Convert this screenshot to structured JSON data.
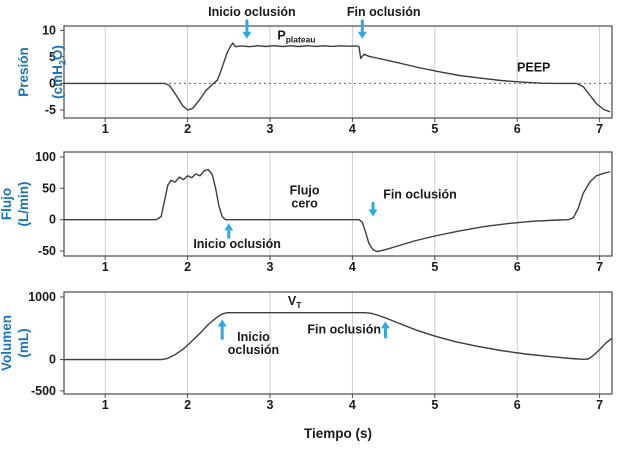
{
  "colors": {
    "axis_label": "#1b75bb",
    "arrow": "#2da8e0",
    "waveform": "#3d3d3d",
    "grid": "#cccccc",
    "border": "#4a4a4a",
    "text": "#1a1a1a"
  },
  "x_axis": {
    "label": "Tiempo (s)"
  },
  "y_axes": {
    "pressure": {
      "line1": "Presión",
      "l2a": "(cmH",
      "l2sub": "2",
      "l2b": "O)"
    },
    "flow": {
      "text": "Flujo\n(L/min)"
    },
    "volume": {
      "text": "Volumen\n(mL)"
    }
  },
  "chart_data": [
    {
      "type": "line",
      "name": "presion",
      "title": "",
      "ylabel": "Presión (cmH₂O)",
      "xlabel": "Tiempo (s)",
      "xlim": [
        0.5,
        7.15
      ],
      "ylim": [
        -6.5,
        10.8
      ],
      "xticks": [
        1,
        2,
        3,
        4,
        5,
        6,
        7
      ],
      "yticks": [
        -5,
        0,
        5,
        10
      ],
      "grid": "vertical-only",
      "zero_dotted": true,
      "series": [
        {
          "name": "presion",
          "points": [
            [
              0.5,
              0
            ],
            [
              1.72,
              0
            ],
            [
              1.78,
              -0.4
            ],
            [
              1.86,
              -2.2
            ],
            [
              1.94,
              -4.2
            ],
            [
              2.0,
              -5.0
            ],
            [
              2.06,
              -4.7
            ],
            [
              2.14,
              -3.2
            ],
            [
              2.22,
              -1.4
            ],
            [
              2.3,
              -0.2
            ],
            [
              2.36,
              0.6
            ],
            [
              2.4,
              2.2
            ],
            [
              2.44,
              4.0
            ],
            [
              2.48,
              5.8
            ],
            [
              2.52,
              7.0
            ],
            [
              2.55,
              7.6
            ],
            [
              2.58,
              6.9
            ],
            [
              2.65,
              7.05
            ],
            [
              2.75,
              6.9
            ],
            [
              2.85,
              7.1
            ],
            [
              2.95,
              6.95
            ],
            [
              3.05,
              7.1
            ],
            [
              3.15,
              6.95
            ],
            [
              3.25,
              7.08
            ],
            [
              3.35,
              6.95
            ],
            [
              3.45,
              7.1
            ],
            [
              3.55,
              6.97
            ],
            [
              3.65,
              7.08
            ],
            [
              3.75,
              6.96
            ],
            [
              3.85,
              7.08
            ],
            [
              3.95,
              7.0
            ],
            [
              4.05,
              7.06
            ],
            [
              4.08,
              6.9
            ],
            [
              4.1,
              4.7
            ],
            [
              4.14,
              5.5
            ],
            [
              4.2,
              5.1
            ],
            [
              4.35,
              4.6
            ],
            [
              4.55,
              3.9
            ],
            [
              4.8,
              3.0
            ],
            [
              5.05,
              2.2
            ],
            [
              5.3,
              1.5
            ],
            [
              5.55,
              1.0
            ],
            [
              5.8,
              0.55
            ],
            [
              6.05,
              0.25
            ],
            [
              6.3,
              0.05
            ],
            [
              6.45,
              0
            ],
            [
              6.72,
              0
            ],
            [
              6.8,
              -0.6
            ],
            [
              6.88,
              -2.2
            ],
            [
              6.96,
              -3.8
            ],
            [
              7.05,
              -4.9
            ],
            [
              7.12,
              -5.3
            ]
          ]
        }
      ],
      "annotations": [
        {
          "type": "text",
          "name": "inicio-occlusion-label",
          "text": "Inicio oclusión",
          "x": 2.78,
          "y": 12.7
        },
        {
          "type": "text",
          "name": "fin-occlusion-label",
          "text": "Fin oclusión",
          "x": 4.38,
          "y": 12.7
        },
        {
          "type": "arrow",
          "name": "inicio-occlusion-arrow",
          "x": 2.72,
          "y1": 12.0,
          "y2": 8.4
        },
        {
          "type": "arrow",
          "name": "fin-occlusion-arrow",
          "x": 4.12,
          "y1": 12.0,
          "y2": 8.4
        },
        {
          "type": "subtext",
          "name": "p-plateau-label",
          "main": "P",
          "sub": "plateau",
          "x": 3.32,
          "y": 8.3
        },
        {
          "type": "text",
          "name": "peep-label",
          "text": "PEEP",
          "x": 6.2,
          "y": 2.2
        }
      ]
    },
    {
      "type": "line",
      "name": "flujo",
      "title": "",
      "ylabel": "Flujo (L/min)",
      "xlabel": "Tiempo (s)",
      "xlim": [
        0.5,
        7.15
      ],
      "ylim": [
        -58,
        108
      ],
      "xticks": [
        1,
        2,
        3,
        4,
        5,
        6,
        7
      ],
      "yticks": [
        -50,
        0,
        50,
        100
      ],
      "grid": "vertical-only",
      "zero_dotted": false,
      "series": [
        {
          "name": "flujo",
          "points": [
            [
              0.5,
              0
            ],
            [
              1.62,
              0
            ],
            [
              1.68,
              5
            ],
            [
              1.72,
              30
            ],
            [
              1.76,
              55
            ],
            [
              1.8,
              63
            ],
            [
              1.85,
              60
            ],
            [
              1.9,
              68
            ],
            [
              1.95,
              64
            ],
            [
              2.0,
              70
            ],
            [
              2.05,
              67
            ],
            [
              2.1,
              73
            ],
            [
              2.15,
              70
            ],
            [
              2.2,
              78
            ],
            [
              2.25,
              80
            ],
            [
              2.3,
              72
            ],
            [
              2.34,
              50
            ],
            [
              2.38,
              22
            ],
            [
              2.42,
              5
            ],
            [
              2.46,
              0
            ],
            [
              4.08,
              0
            ],
            [
              4.12,
              -4
            ],
            [
              4.16,
              -20
            ],
            [
              4.2,
              -38
            ],
            [
              4.25,
              -48
            ],
            [
              4.3,
              -51
            ],
            [
              4.4,
              -48
            ],
            [
              4.55,
              -42
            ],
            [
              4.75,
              -34
            ],
            [
              5.0,
              -26
            ],
            [
              5.3,
              -18
            ],
            [
              5.6,
              -11
            ],
            [
              5.9,
              -6
            ],
            [
              6.2,
              -2.5
            ],
            [
              6.5,
              -0.5
            ],
            [
              6.62,
              0
            ],
            [
              6.68,
              3
            ],
            [
              6.74,
              18
            ],
            [
              6.8,
              42
            ],
            [
              6.88,
              60
            ],
            [
              6.96,
              70
            ],
            [
              7.05,
              74
            ],
            [
              7.12,
              76
            ]
          ]
        }
      ],
      "annotations": [
        {
          "type": "text",
          "name": "flujo-cero-label",
          "text": "Flujo\ncero",
          "x": 3.42,
          "y": 40
        },
        {
          "type": "text",
          "name": "fin-occlusion-label",
          "text": "Fin oclusión",
          "x": 4.82,
          "y": 34
        },
        {
          "type": "arrow",
          "name": "fin-occlusion-arrow",
          "x": 4.25,
          "y1": 28,
          "y2": 5
        },
        {
          "type": "arrow",
          "name": "inicio-occlusion-arrow",
          "x": 2.5,
          "y1": -30,
          "y2": -6
        },
        {
          "type": "text",
          "name": "inicio-occlusion-label",
          "text": "Inicio oclusión",
          "x": 2.6,
          "y": -45
        }
      ]
    },
    {
      "type": "line",
      "name": "volumen",
      "title": "",
      "ylabel": "Volumen (mL)",
      "xlabel": "Tiempo (s)",
      "xlim": [
        0.5,
        7.15
      ],
      "ylim": [
        -550,
        1080
      ],
      "xticks": [
        1,
        2,
        3,
        4,
        5,
        6,
        7
      ],
      "yticks": [
        -500,
        0,
        1000
      ],
      "grid": "vertical-only",
      "zero_dotted": false,
      "series": [
        {
          "name": "volumen",
          "points": [
            [
              0.5,
              0
            ],
            [
              1.68,
              0
            ],
            [
              1.75,
              15
            ],
            [
              1.85,
              80
            ],
            [
              1.95,
              170
            ],
            [
              2.05,
              290
            ],
            [
              2.15,
              420
            ],
            [
              2.25,
              560
            ],
            [
              2.35,
              670
            ],
            [
              2.42,
              730
            ],
            [
              2.48,
              750
            ],
            [
              4.15,
              750
            ],
            [
              4.22,
              742
            ],
            [
              4.32,
              705
            ],
            [
              4.45,
              640
            ],
            [
              4.6,
              560
            ],
            [
              4.8,
              460
            ],
            [
              5.0,
              375
            ],
            [
              5.25,
              285
            ],
            [
              5.5,
              215
            ],
            [
              5.8,
              145
            ],
            [
              6.1,
              90
            ],
            [
              6.4,
              48
            ],
            [
              6.65,
              18
            ],
            [
              6.8,
              4
            ],
            [
              6.86,
              10
            ],
            [
              6.92,
              60
            ],
            [
              7.0,
              160
            ],
            [
              7.08,
              270
            ],
            [
              7.14,
              330
            ]
          ]
        }
      ],
      "annotations": [
        {
          "type": "subtext",
          "name": "vt-label",
          "main": "V",
          "sub": "T",
          "x": 3.3,
          "y": 870
        },
        {
          "type": "text",
          "name": "inicio-occlusion-label",
          "text": "Inicio\noclusión",
          "x": 2.8,
          "y": 300
        },
        {
          "type": "arrow",
          "name": "inicio-occlusion-arrow",
          "x": 2.42,
          "y1": 320,
          "y2": 640
        },
        {
          "type": "text",
          "name": "fin-occlusion-label",
          "text": "Fin oclusión",
          "x": 3.9,
          "y": 420
        },
        {
          "type": "arrow",
          "name": "fin-occlusion-arrow",
          "x": 4.4,
          "y1": 340,
          "y2": 610
        }
      ]
    }
  ]
}
